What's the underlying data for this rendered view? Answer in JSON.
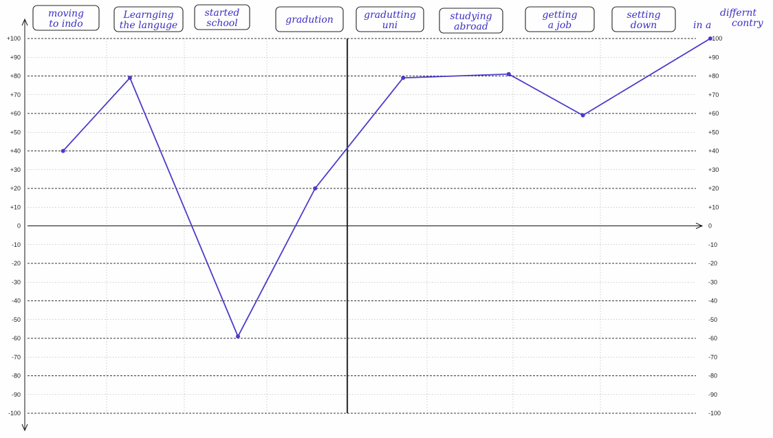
{
  "chart_data": {
    "type": "line",
    "title": "",
    "xlabel": "",
    "ylabel": "",
    "ylim": [
      -100,
      100
    ],
    "yticks": [
      "+100",
      "+90",
      "+80",
      "+70",
      "+60",
      "+50",
      "+40",
      "+30",
      "+20",
      "+10",
      "0",
      "-10",
      "-20",
      "-30",
      "-40",
      "-50",
      "-60",
      "-70",
      "-80",
      "-90",
      "-100"
    ],
    "categories": [
      [
        "moving",
        "to indo"
      ],
      [
        "Learnging",
        "the languge"
      ],
      [
        "started",
        "school"
      ],
      [
        "gradution"
      ],
      [
        "gradutting",
        "uni"
      ],
      [
        "studying",
        "abroad"
      ],
      [
        "getting",
        "a job"
      ],
      [
        "setting",
        "down"
      ]
    ],
    "trailing_note": [
      "in a",
      "differnt",
      "contry"
    ],
    "points": [
      {
        "x": 0.45,
        "y": 40
      },
      {
        "x": 1.3,
        "y": 79
      },
      {
        "x": 2.65,
        "y": -59
      },
      {
        "x": 3.6,
        "y": 20
      },
      {
        "x": 4.7,
        "y": 79
      },
      {
        "x": 5.95,
        "y": 81
      },
      {
        "x": 6.8,
        "y": 59
      },
      {
        "x": 8.15,
        "y": 100
      }
    ],
    "line_color": "#4b3bc9",
    "grid": true,
    "divider_after_category": 3
  }
}
